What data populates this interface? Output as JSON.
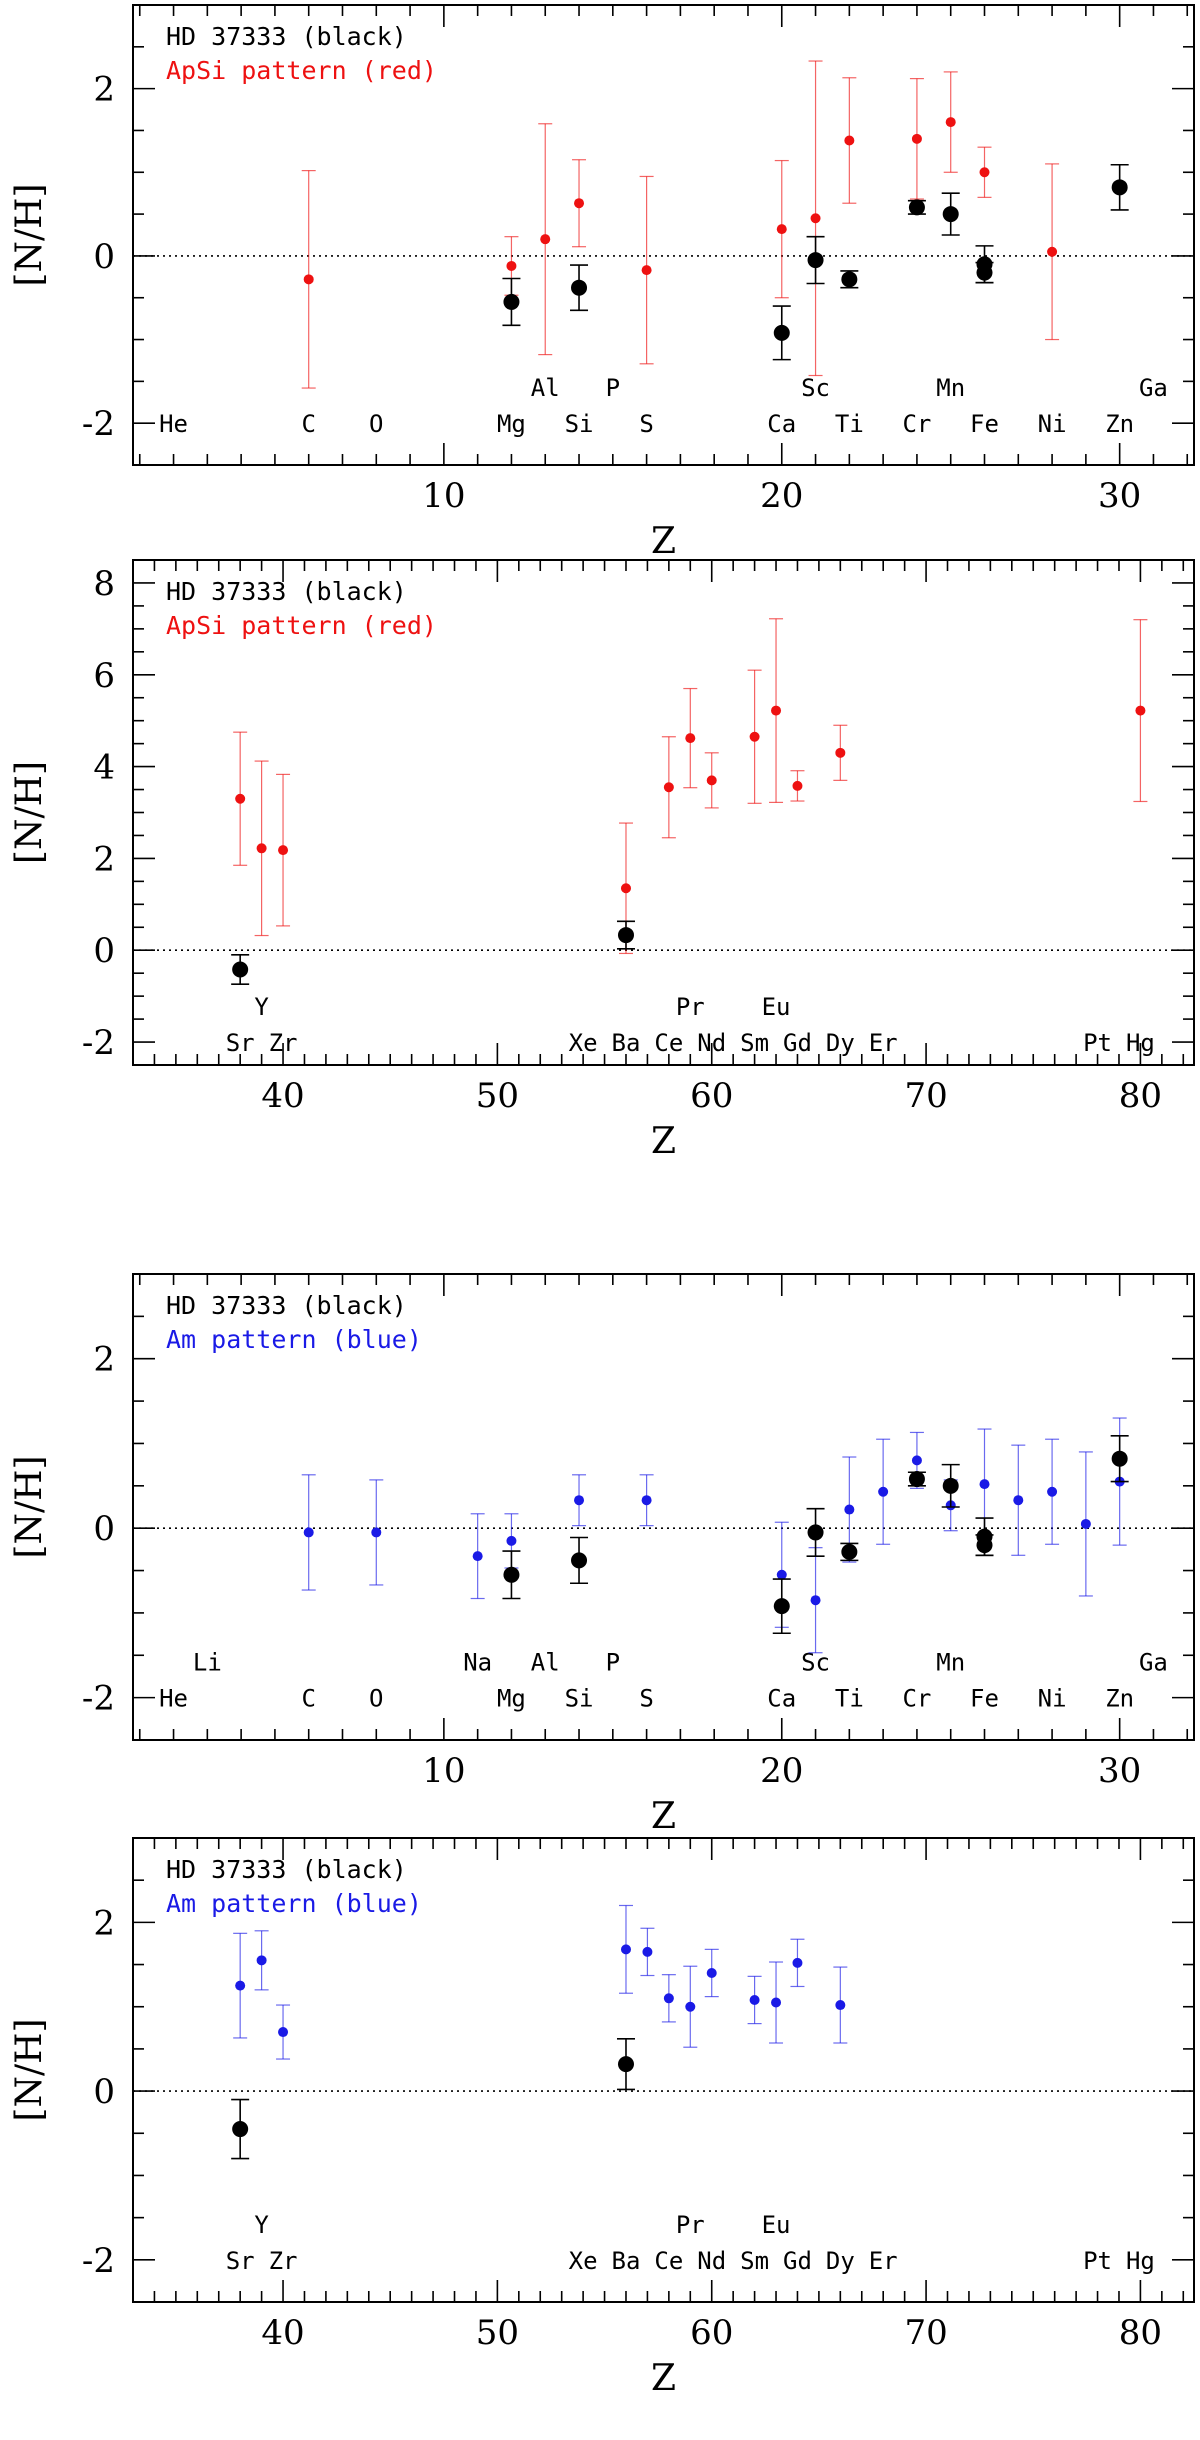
{
  "colors": {
    "target": "#000000",
    "apsi": "#ee1111",
    "am": "#1a1ae6",
    "frame": "#000000"
  },
  "chart_data": [
    {
      "type": "scatter",
      "title": "",
      "xlabel": "Z",
      "ylabel": "[N/H]",
      "xlim": [
        0.8,
        32.2
      ],
      "ylim": [
        -2.5,
        3.0
      ],
      "xticks_major": [
        10,
        20,
        30
      ],
      "yticks_major": [
        -2,
        0,
        2
      ],
      "legend": {
        "position": "top-left",
        "entries": [
          {
            "text": "HD 37333 (black)",
            "color": "#000000"
          },
          {
            "text": "ApSi pattern (red)",
            "color": "#ee1111"
          }
        ]
      },
      "series": [
        {
          "name": "HD 37333",
          "color": "#000000",
          "marker": "large",
          "points": [
            {
              "x": 12,
              "y": -0.55,
              "err": 0.28
            },
            {
              "x": 14,
              "y": -0.38,
              "err": 0.27
            },
            {
              "x": 20,
              "y": -0.92,
              "err": 0.32
            },
            {
              "x": 21,
              "y": -0.05,
              "err": 0.28
            },
            {
              "x": 22,
              "y": -0.28,
              "err": 0.1
            },
            {
              "x": 24,
              "y": 0.58,
              "err": 0.08
            },
            {
              "x": 25,
              "y": 0.5,
              "err": 0.25
            },
            {
              "x": 26,
              "y": -0.1,
              "err": 0.22
            },
            {
              "x": 26,
              "y": -0.2,
              "err": 0.12
            },
            {
              "x": 30,
              "y": 0.82,
              "err": 0.27
            }
          ]
        },
        {
          "name": "ApSi pattern",
          "color": "#ee1111",
          "marker": "small",
          "points": [
            {
              "x": 6,
              "y": -0.28,
              "err": 1.3
            },
            {
              "x": 12,
              "y": -0.12,
              "err": 0.35
            },
            {
              "x": 13,
              "y": 0.2,
              "err": 1.38
            },
            {
              "x": 14,
              "y": 0.63,
              "err": 0.52
            },
            {
              "x": 16,
              "y": -0.17,
              "err": 1.12
            },
            {
              "x": 20,
              "y": 0.32,
              "err": 0.82
            },
            {
              "x": 21,
              "y": 0.45,
              "err": 1.88
            },
            {
              "x": 22,
              "y": 1.38,
              "err": 0.75
            },
            {
              "x": 24,
              "y": 1.4,
              "err": 0.72
            },
            {
              "x": 25,
              "y": 1.6,
              "err": 0.6
            },
            {
              "x": 26,
              "y": 1.0,
              "err": 0.3
            },
            {
              "x": 28,
              "y": 0.05,
              "err": 1.05
            }
          ]
        }
      ],
      "element_labels": [
        {
          "z": 2,
          "symbol": "He",
          "row": 0
        },
        {
          "z": 6,
          "symbol": "C",
          "row": 0
        },
        {
          "z": 8,
          "symbol": "O",
          "row": 0
        },
        {
          "z": 12,
          "symbol": "Mg",
          "row": 0
        },
        {
          "z": 13,
          "symbol": "Al",
          "row": 1
        },
        {
          "z": 14,
          "symbol": "Si",
          "row": 0
        },
        {
          "z": 15,
          "symbol": "P",
          "row": 1
        },
        {
          "z": 16,
          "symbol": "S",
          "row": 0
        },
        {
          "z": 20,
          "symbol": "Ca",
          "row": 0
        },
        {
          "z": 21,
          "symbol": "Sc",
          "row": 1
        },
        {
          "z": 22,
          "symbol": "Ti",
          "row": 0
        },
        {
          "z": 24,
          "symbol": "Cr",
          "row": 0
        },
        {
          "z": 25,
          "symbol": "Mn",
          "row": 1
        },
        {
          "z": 26,
          "symbol": "Fe",
          "row": 0
        },
        {
          "z": 28,
          "symbol": "Ni",
          "row": 0
        },
        {
          "z": 30,
          "symbol": "Zn",
          "row": 0
        },
        {
          "z": 31,
          "symbol": "Ga",
          "row": 1
        }
      ]
    },
    {
      "type": "scatter",
      "title": "",
      "xlabel": "Z",
      "ylabel": "[N/H]",
      "xlim": [
        33.0,
        82.5
      ],
      "ylim": [
        -2.5,
        8.5
      ],
      "xticks_major": [
        40,
        50,
        60,
        70,
        80
      ],
      "yticks_major": [
        -2,
        0,
        2,
        4,
        6,
        8
      ],
      "legend": {
        "position": "top-left",
        "entries": [
          {
            "text": "HD 37333 (black)",
            "color": "#000000"
          },
          {
            "text": "ApSi pattern (red)",
            "color": "#ee1111"
          }
        ]
      },
      "series": [
        {
          "name": "HD 37333",
          "color": "#000000",
          "marker": "large",
          "points": [
            {
              "x": 38,
              "y": -0.42,
              "err": 0.32
            },
            {
              "x": 56,
              "y": 0.33,
              "err": 0.3
            }
          ]
        },
        {
          "name": "ApSi pattern",
          "color": "#ee1111",
          "marker": "small",
          "points": [
            {
              "x": 38,
              "y": 3.3,
              "err": 1.45
            },
            {
              "x": 39,
              "y": 2.22,
              "err": 1.9
            },
            {
              "x": 40,
              "y": 2.18,
              "err": 1.65
            },
            {
              "x": 56,
              "y": 1.35,
              "err": 1.42
            },
            {
              "x": 58,
              "y": 3.55,
              "err": 1.1
            },
            {
              "x": 59,
              "y": 4.62,
              "err": 1.08
            },
            {
              "x": 60,
              "y": 3.7,
              "err": 0.6
            },
            {
              "x": 62,
              "y": 4.65,
              "err": 1.45
            },
            {
              "x": 63,
              "y": 5.22,
              "err": 2.0
            },
            {
              "x": 64,
              "y": 3.58,
              "err": 0.33
            },
            {
              "x": 66,
              "y": 4.3,
              "err": 0.6
            },
            {
              "x": 80,
              "y": 5.22,
              "err": 1.98
            }
          ]
        }
      ],
      "element_labels": [
        {
          "z": 38,
          "symbol": "Sr",
          "row": 0
        },
        {
          "z": 39,
          "symbol": "Y",
          "row": 1
        },
        {
          "z": 40,
          "symbol": "Zr",
          "row": 0
        },
        {
          "z": 54,
          "symbol": "Xe",
          "row": 0
        },
        {
          "z": 56,
          "symbol": "Ba",
          "row": 0
        },
        {
          "z": 58,
          "symbol": "Ce",
          "row": 0
        },
        {
          "z": 59,
          "symbol": "Pr",
          "row": 1
        },
        {
          "z": 60,
          "symbol": "Nd",
          "row": 0
        },
        {
          "z": 62,
          "symbol": "Sm",
          "row": 0
        },
        {
          "z": 63,
          "symbol": "Eu",
          "row": 1
        },
        {
          "z": 64,
          "symbol": "Gd",
          "row": 0
        },
        {
          "z": 66,
          "symbol": "Dy",
          "row": 0
        },
        {
          "z": 68,
          "symbol": "Er",
          "row": 0
        },
        {
          "z": 78,
          "symbol": "Pt",
          "row": 0
        },
        {
          "z": 80,
          "symbol": "Hg",
          "row": 0
        }
      ]
    },
    {
      "type": "scatter",
      "title": "",
      "xlabel": "Z",
      "ylabel": "[N/H]",
      "xlim": [
        0.8,
        32.2
      ],
      "ylim": [
        -2.5,
        3.0
      ],
      "xticks_major": [
        10,
        20,
        30
      ],
      "yticks_major": [
        -2,
        0,
        2
      ],
      "legend": {
        "position": "top-left",
        "entries": [
          {
            "text": "HD 37333 (black)",
            "color": "#000000"
          },
          {
            "text": "Am pattern (blue)",
            "color": "#1a1ae6"
          }
        ]
      },
      "series": [
        {
          "name": "HD 37333",
          "color": "#000000",
          "marker": "large",
          "points": [
            {
              "x": 12,
              "y": -0.55,
              "err": 0.28
            },
            {
              "x": 14,
              "y": -0.38,
              "err": 0.27
            },
            {
              "x": 20,
              "y": -0.92,
              "err": 0.32
            },
            {
              "x": 21,
              "y": -0.05,
              "err": 0.28
            },
            {
              "x": 22,
              "y": -0.28,
              "err": 0.1
            },
            {
              "x": 24,
              "y": 0.58,
              "err": 0.08
            },
            {
              "x": 25,
              "y": 0.5,
              "err": 0.25
            },
            {
              "x": 26,
              "y": -0.1,
              "err": 0.22
            },
            {
              "x": 26,
              "y": -0.2,
              "err": 0.12
            },
            {
              "x": 30,
              "y": 0.82,
              "err": 0.27
            }
          ]
        },
        {
          "name": "Am pattern",
          "color": "#1a1ae6",
          "marker": "small",
          "points": [
            {
              "x": 6,
              "y": -0.05,
              "err": 0.68
            },
            {
              "x": 8,
              "y": -0.05,
              "err": 0.62
            },
            {
              "x": 11,
              "y": -0.33,
              "err": 0.5
            },
            {
              "x": 12,
              "y": -0.15,
              "err": 0.32
            },
            {
              "x": 14,
              "y": 0.33,
              "err": 0.3
            },
            {
              "x": 16,
              "y": 0.33,
              "err": 0.3
            },
            {
              "x": 20,
              "y": -0.55,
              "err": 0.62
            },
            {
              "x": 21,
              "y": -0.85,
              "err": 0.62
            },
            {
              "x": 22,
              "y": 0.22,
              "err": 0.62
            },
            {
              "x": 23,
              "y": 0.43,
              "err": 0.62
            },
            {
              "x": 24,
              "y": 0.8,
              "err": 0.33
            },
            {
              "x": 25,
              "y": 0.27,
              "err": 0.3
            },
            {
              "x": 26,
              "y": 0.52,
              "err": 0.65
            },
            {
              "x": 27,
              "y": 0.33,
              "err": 0.65
            },
            {
              "x": 28,
              "y": 0.43,
              "err": 0.62
            },
            {
              "x": 29,
              "y": 0.05,
              "err": 0.85
            },
            {
              "x": 30,
              "y": 0.55,
              "err": 0.75
            }
          ]
        }
      ],
      "element_labels": [
        {
          "z": 2,
          "symbol": "He",
          "row": 0
        },
        {
          "z": 3,
          "symbol": "Li",
          "row": 1
        },
        {
          "z": 6,
          "symbol": "C",
          "row": 0
        },
        {
          "z": 8,
          "symbol": "O",
          "row": 0
        },
        {
          "z": 11,
          "symbol": "Na",
          "row": 1
        },
        {
          "z": 12,
          "symbol": "Mg",
          "row": 0
        },
        {
          "z": 13,
          "symbol": "Al",
          "row": 1
        },
        {
          "z": 14,
          "symbol": "Si",
          "row": 0
        },
        {
          "z": 15,
          "symbol": "P",
          "row": 1
        },
        {
          "z": 16,
          "symbol": "S",
          "row": 0
        },
        {
          "z": 20,
          "symbol": "Ca",
          "row": 0
        },
        {
          "z": 21,
          "symbol": "Sc",
          "row": 1
        },
        {
          "z": 22,
          "symbol": "Ti",
          "row": 0
        },
        {
          "z": 24,
          "symbol": "Cr",
          "row": 0
        },
        {
          "z": 25,
          "symbol": "Mn",
          "row": 1
        },
        {
          "z": 26,
          "symbol": "Fe",
          "row": 0
        },
        {
          "z": 28,
          "symbol": "Ni",
          "row": 0
        },
        {
          "z": 30,
          "symbol": "Zn",
          "row": 0
        },
        {
          "z": 31,
          "symbol": "Ga",
          "row": 1
        }
      ]
    },
    {
      "type": "scatter",
      "title": "",
      "xlabel": "Z",
      "ylabel": "[N/H]",
      "xlim": [
        33.0,
        82.5
      ],
      "ylim": [
        -2.5,
        3.0
      ],
      "xticks_major": [
        40,
        50,
        60,
        70,
        80
      ],
      "yticks_major": [
        -2,
        0,
        2
      ],
      "legend": {
        "position": "top-left",
        "entries": [
          {
            "text": "HD 37333 (black)",
            "color": "#000000"
          },
          {
            "text": "Am pattern (blue)",
            "color": "#1a1ae6"
          }
        ]
      },
      "series": [
        {
          "name": "HD 37333",
          "color": "#000000",
          "marker": "large",
          "points": [
            {
              "x": 38,
              "y": -0.45,
              "err": 0.35
            },
            {
              "x": 56,
              "y": 0.32,
              "err": 0.3
            }
          ]
        },
        {
          "name": "Am pattern",
          "color": "#1a1ae6",
          "marker": "small",
          "points": [
            {
              "x": 38,
              "y": 1.25,
              "err": 0.62
            },
            {
              "x": 39,
              "y": 1.55,
              "err": 0.35
            },
            {
              "x": 40,
              "y": 0.7,
              "err": 0.32
            },
            {
              "x": 56,
              "y": 1.68,
              "err": 0.52
            },
            {
              "x": 57,
              "y": 1.65,
              "err": 0.28
            },
            {
              "x": 58,
              "y": 1.1,
              "err": 0.28
            },
            {
              "x": 59,
              "y": 1.0,
              "err": 0.48
            },
            {
              "x": 60,
              "y": 1.4,
              "err": 0.28
            },
            {
              "x": 62,
              "y": 1.08,
              "err": 0.28
            },
            {
              "x": 63,
              "y": 1.05,
              "err": 0.48
            },
            {
              "x": 64,
              "y": 1.52,
              "err": 0.28
            },
            {
              "x": 66,
              "y": 1.02,
              "err": 0.45
            }
          ]
        }
      ],
      "element_labels": [
        {
          "z": 38,
          "symbol": "Sr",
          "row": 0
        },
        {
          "z": 39,
          "symbol": "Y",
          "row": 1
        },
        {
          "z": 40,
          "symbol": "Zr",
          "row": 0
        },
        {
          "z": 54,
          "symbol": "Xe",
          "row": 0
        },
        {
          "z": 56,
          "symbol": "Ba",
          "row": 0
        },
        {
          "z": 58,
          "symbol": "Ce",
          "row": 0
        },
        {
          "z": 59,
          "symbol": "Pr",
          "row": 1
        },
        {
          "z": 60,
          "symbol": "Nd",
          "row": 0
        },
        {
          "z": 62,
          "symbol": "Sm",
          "row": 0
        },
        {
          "z": 63,
          "symbol": "Eu",
          "row": 1
        },
        {
          "z": 64,
          "symbol": "Gd",
          "row": 0
        },
        {
          "z": 66,
          "symbol": "Dy",
          "row": 0
        },
        {
          "z": 68,
          "symbol": "Er",
          "row": 0
        },
        {
          "z": 78,
          "symbol": "Pt",
          "row": 0
        },
        {
          "z": 80,
          "symbol": "Hg",
          "row": 0
        }
      ]
    }
  ]
}
